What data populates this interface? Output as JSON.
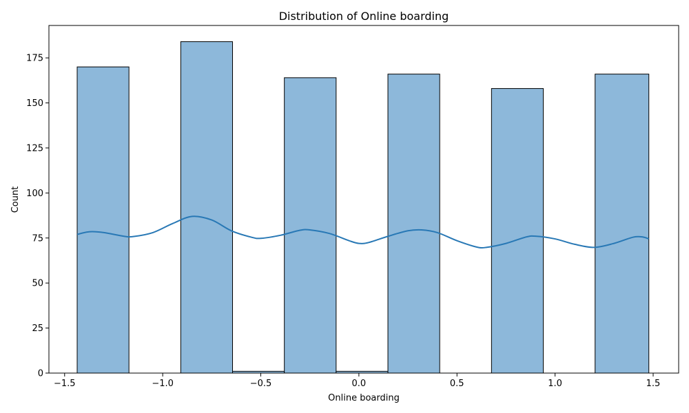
{
  "chart_data": {
    "type": "bar",
    "title": "Distribution of Online boarding",
    "xlabel": "Online boarding",
    "ylabel": "Count",
    "xlim": [
      -1.58,
      1.63
    ],
    "ylim": [
      0,
      193
    ],
    "xticks": [
      -1.5,
      -1.0,
      -0.5,
      0.0,
      0.5,
      1.0,
      1.5
    ],
    "xtick_labels": [
      "−1.5",
      "−1.0",
      "−0.5",
      "0.0",
      "0.5",
      "1.0",
      "1.5"
    ],
    "yticks": [
      0,
      25,
      50,
      75,
      100,
      125,
      150,
      175
    ],
    "ytick_labels": [
      "0",
      "25",
      "50",
      "75",
      "100",
      "125",
      "150",
      "175"
    ],
    "bins": [
      {
        "x0": -1.436,
        "x1": -1.172,
        "count": 170
      },
      {
        "x0": -1.172,
        "x1": -0.908,
        "count": 0
      },
      {
        "x0": -0.908,
        "x1": -0.644,
        "count": 184
      },
      {
        "x0": -0.644,
        "x1": -0.38,
        "count": 1
      },
      {
        "x0": -0.38,
        "x1": -0.116,
        "count": 164
      },
      {
        "x0": -0.116,
        "x1": 0.148,
        "count": 1
      },
      {
        "x0": 0.148,
        "x1": 0.412,
        "count": 166
      },
      {
        "x0": 0.412,
        "x1": 0.676,
        "count": 0
      },
      {
        "x0": 0.676,
        "x1": 0.94,
        "count": 158
      },
      {
        "x0": 0.94,
        "x1": 1.204,
        "count": 0
      },
      {
        "x0": 1.204,
        "x1": 1.478,
        "count": 166
      }
    ],
    "kde": {
      "x": [
        -1.436,
        -1.37,
        -1.3,
        -1.2,
        -1.15,
        -1.05,
        -0.95,
        -0.85,
        -0.75,
        -0.65,
        -0.55,
        -0.5,
        -0.4,
        -0.3,
        -0.25,
        -0.15,
        -0.05,
        0.0,
        0.05,
        0.15,
        0.25,
        0.32,
        0.4,
        0.5,
        0.6,
        0.65,
        0.75,
        0.85,
        0.9,
        1.0,
        1.1,
        1.2,
        1.3,
        1.4,
        1.45,
        1.478
      ],
      "y": [
        77,
        78.5,
        78,
        76,
        75.8,
        78,
        83,
        87,
        85,
        79,
        75.5,
        74.8,
        76.5,
        79.3,
        79.5,
        77.5,
        73.5,
        72,
        72.5,
        76,
        79,
        79.5,
        78,
        73.5,
        70,
        69.8,
        72,
        75.5,
        76,
        74.5,
        71.5,
        69.8,
        72,
        75.5,
        75.5,
        74.5
      ]
    },
    "bar_color": "#8db8da",
    "edge_color": "#000000",
    "kde_color": "#2878b5",
    "grid": false,
    "legend": false
  }
}
